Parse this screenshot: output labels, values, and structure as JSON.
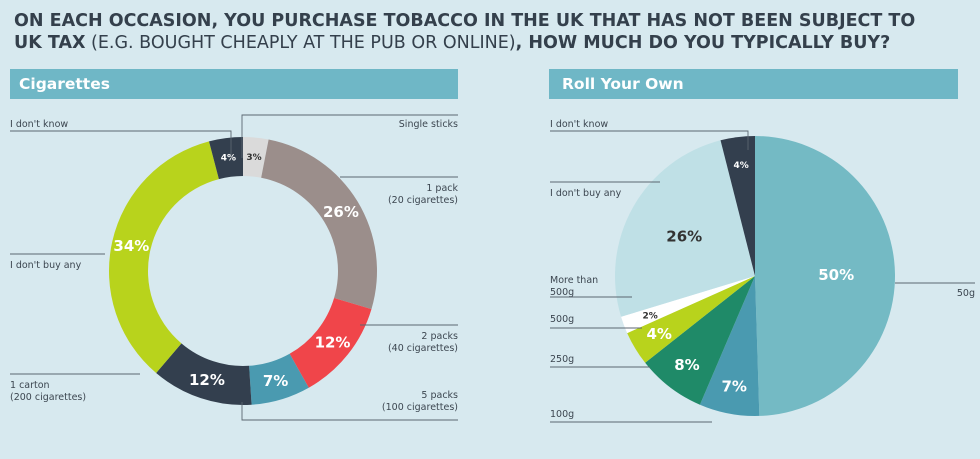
{
  "title": {
    "part1": "ON EACH OCCASION, YOU PURCHASE TOBACCO IN THE UK THAT HAS NOT BEEN SUBJECT TO",
    "part2": "UK TAX",
    "part3": " (E.G. BOUGHT CHEAPLY AT THE PUB OR ONLINE)",
    "part4": ", HOW MUCH DO YOU TYPICALLY BUY?"
  },
  "colors": {
    "background": "#d7e9ef",
    "banner": "#6fb7c6",
    "title": "#34404c"
  },
  "chart_data": [
    {
      "type": "pie",
      "title": "Cigarettes",
      "slices": [
        {
          "label": "Single sticks",
          "value": 3,
          "display": "3%",
          "color": "#dadada"
        },
        {
          "label": "1 pack",
          "sublabel": "(20 cigarettes)",
          "value": 26,
          "display": "26%",
          "color": "#9b8e8b"
        },
        {
          "label": "2 packs",
          "sublabel": "(40 cigarettes)",
          "value": 12,
          "display": "12%",
          "color": "#f0454a"
        },
        {
          "label": "5 packs",
          "sublabel": "(100 cigarettes)",
          "value": 7,
          "display": "7%",
          "color": "#4a9ab0"
        },
        {
          "label": "1 carton",
          "sublabel": "(200 cigarettes)",
          "value": 12,
          "display": "12%",
          "color": "#333f4e"
        },
        {
          "label": "I don't buy any",
          "value": 34,
          "display": "34%",
          "color": "#b8d31c"
        },
        {
          "label": "I don't know",
          "value": 4,
          "display": "4%",
          "color": "#333f4e"
        }
      ]
    },
    {
      "type": "pie",
      "title": "Roll Your Own",
      "slices": [
        {
          "label": "50g",
          "value": 50,
          "display": "50%",
          "color": "#74bac4"
        },
        {
          "label": "100g",
          "value": 7,
          "display": "7%",
          "color": "#4a9ab0"
        },
        {
          "label": "250g",
          "value": 8,
          "display": "8%",
          "color": "#1f8a68"
        },
        {
          "label": "500g",
          "value": 4,
          "display": "4%",
          "color": "#b8d31c"
        },
        {
          "label": "More than 500g",
          "value": 2,
          "display": "2%",
          "color": "#ffffff"
        },
        {
          "label": "I don't buy any",
          "value": 26,
          "display": "26%",
          "color": "#bfe0e6"
        },
        {
          "label": "I don't know",
          "value": 4,
          "display": "4%",
          "color": "#333f4e"
        }
      ]
    }
  ]
}
